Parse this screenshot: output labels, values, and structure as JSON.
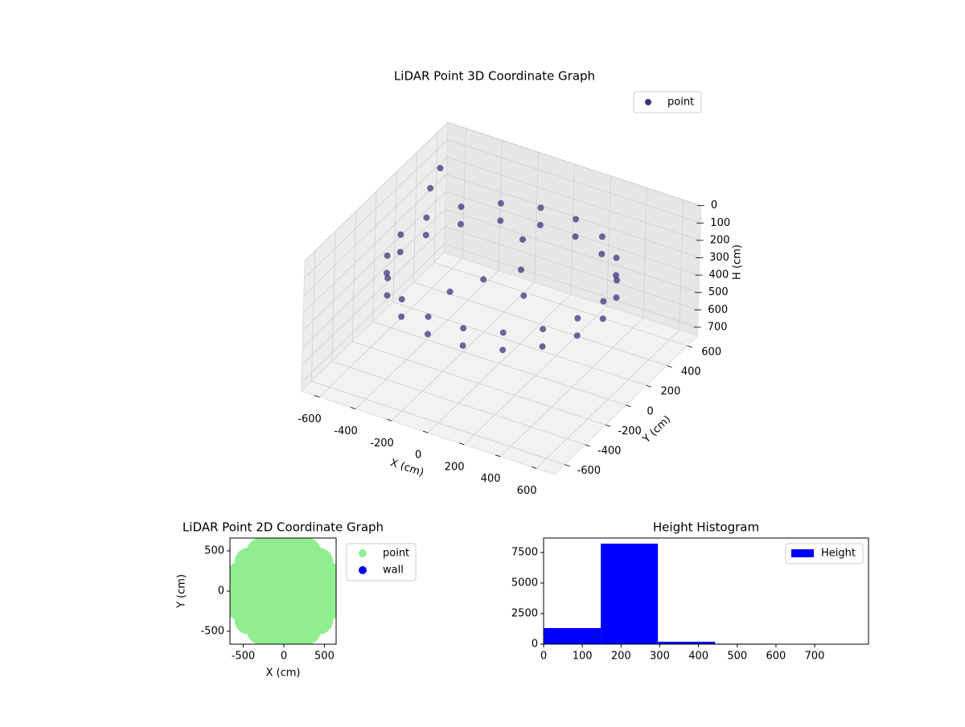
{
  "chart_data": [
    {
      "type": "scatter3d",
      "title": "LiDAR Point 3D Coordinate Graph",
      "xlabel": "X (cm)",
      "ylabel": "Y (cm)",
      "zlabel": "H (cm)",
      "xlim": [
        -700,
        700
      ],
      "ylim": [
        -700,
        700
      ],
      "zlim": [
        0,
        750
      ],
      "z_inverted": true,
      "xticks": [
        -600,
        -400,
        -200,
        0,
        200,
        400,
        600
      ],
      "yticks": [
        -600,
        -400,
        -200,
        0,
        200,
        400,
        600
      ],
      "zticks": [
        0,
        100,
        200,
        300,
        400,
        500,
        600,
        700
      ],
      "grid": true,
      "legend": "upper right",
      "series": [
        {
          "name": "point",
          "color": "#46327e",
          "x": [
            560,
            526,
            429,
            280,
            97,
            -97,
            -280,
            -429,
            -526,
            -560,
            -526,
            -429,
            -280,
            -97,
            97,
            280,
            429,
            526,
            560,
            526,
            429,
            280,
            97,
            -97,
            -280,
            -429,
            -526,
            -560,
            -526,
            -429,
            -280,
            -97,
            97,
            280,
            429,
            526,
            50,
            -100,
            150,
            0,
            -200,
            -680,
            -650
          ],
          "y": [
            0,
            192,
            360,
            485,
            551,
            551,
            485,
            360,
            192,
            0,
            -192,
            -360,
            -485,
            -551,
            -551,
            -485,
            -360,
            -192,
            0,
            192,
            360,
            485,
            551,
            551,
            485,
            360,
            192,
            0,
            -192,
            -360,
            -485,
            -551,
            -551,
            -485,
            -360,
            -192,
            100,
            0,
            -50,
            200,
            -150,
            600,
            450
          ],
          "z": [
            200,
            200,
            200,
            200,
            200,
            200,
            200,
            200,
            200,
            200,
            200,
            200,
            200,
            200,
            200,
            200,
            200,
            200,
            300,
            300,
            300,
            300,
            300,
            300,
            300,
            300,
            300,
            300,
            300,
            300,
            300,
            300,
            300,
            300,
            300,
            300,
            250,
            300,
            280,
            150,
            320,
            200,
            220
          ]
        }
      ]
    },
    {
      "type": "scatter",
      "title": "LiDAR Point 2D Coordinate Graph",
      "xlabel": "X (cm)",
      "ylabel": "Y (cm)",
      "xlim": [
        -663,
        644
      ],
      "ylim": [
        -660,
        660
      ],
      "xticks": [
        -500,
        0,
        500
      ],
      "yticks": [
        -500,
        0,
        500
      ],
      "legend": "outside right",
      "series": [
        {
          "name": "point",
          "color": "#90ee90",
          "x": [
            560,
            526,
            429,
            280,
            97,
            -97,
            -280,
            -429,
            -526,
            -560,
            -526,
            -429,
            -280,
            -97,
            97,
            280,
            429,
            526,
            300,
            260,
            150,
            0,
            -150,
            -260,
            -300,
            -260,
            -150,
            0,
            150,
            260,
            0
          ],
          "y": [
            0,
            192,
            360,
            485,
            551,
            551,
            485,
            360,
            192,
            0,
            -192,
            -360,
            -485,
            -551,
            -551,
            -485,
            -360,
            -192,
            0,
            150,
            260,
            300,
            260,
            150,
            0,
            -150,
            -260,
            -300,
            -260,
            -150,
            0
          ]
        },
        {
          "name": "wall",
          "color": "#0000ff",
          "x": [],
          "y": []
        }
      ]
    },
    {
      "type": "histogram",
      "title": "Height Histogram",
      "bins": [
        0,
        147.6,
        295.2,
        442.8,
        590.4,
        738
      ],
      "series": [
        {
          "name": "Height",
          "color": "#0000ff",
          "values": [
            1316,
            8224,
            200,
            40,
            10
          ]
        }
      ],
      "xlim": [
        0,
        839
      ],
      "ylim": [
        0,
        8684
      ],
      "xticks": [
        0,
        100,
        200,
        300,
        400,
        500,
        600,
        700
      ],
      "yticks": [
        0,
        2500,
        5000,
        7500
      ],
      "legend": "upper right"
    }
  ]
}
